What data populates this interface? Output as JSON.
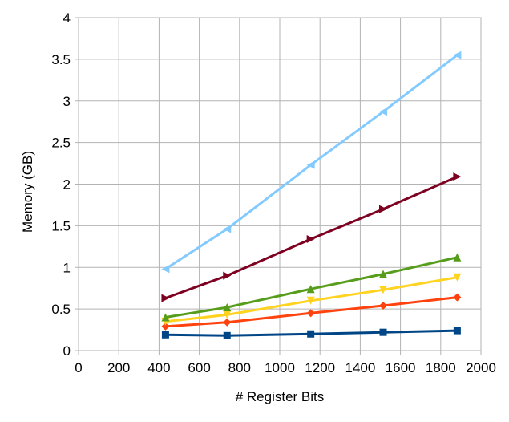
{
  "chart_data": {
    "type": "line",
    "title": "",
    "xlabel": "# Register Bits",
    "ylabel": "Memory (GB)",
    "xlim": [
      0,
      2000
    ],
    "ylim": [
      0,
      4
    ],
    "xticks": [
      0,
      200,
      400,
      600,
      800,
      1000,
      1200,
      1400,
      1600,
      1800,
      2000
    ],
    "yticks": [
      0,
      0.5,
      1,
      1.5,
      2,
      2.5,
      3,
      3.5,
      4
    ],
    "xtick_labels": [
      "0",
      "200",
      "400",
      "600",
      "800",
      "1000",
      "1200",
      "1400",
      "1600",
      "1800",
      "2000"
    ],
    "ytick_labels": [
      "0",
      "0.5",
      "1",
      "1.5",
      "2",
      "2.5",
      "3",
      "3.5",
      "4"
    ],
    "grid": true,
    "legend": "none",
    "series": [
      {
        "color": "#004586",
        "marker": "square",
        "x": [
          432,
          738,
          1154,
          1514,
          1882
        ],
        "y": [
          0.19,
          0.18,
          0.2,
          0.22,
          0.24
        ]
      },
      {
        "color": "#ff420e",
        "marker": "diamond",
        "x": [
          432,
          738,
          1154,
          1514,
          1882
        ],
        "y": [
          0.29,
          0.34,
          0.45,
          0.54,
          0.64
        ]
      },
      {
        "color": "#ffd320",
        "marker": "triangle-down",
        "x": [
          432,
          738,
          1154,
          1514,
          1882
        ],
        "y": [
          0.35,
          0.43,
          0.6,
          0.73,
          0.88
        ]
      },
      {
        "color": "#579d1c",
        "marker": "triangle-up",
        "x": [
          432,
          738,
          1154,
          1514,
          1882
        ],
        "y": [
          0.4,
          0.52,
          0.74,
          0.92,
          1.12
        ]
      },
      {
        "color": "#7e0021",
        "marker": "triangle-right",
        "x": [
          432,
          738,
          1154,
          1514,
          1882
        ],
        "y": [
          0.63,
          0.9,
          1.34,
          1.7,
          2.09
        ]
      },
      {
        "color": "#83caff",
        "marker": "triangle-left",
        "x": [
          432,
          738,
          1154,
          1514,
          1882
        ],
        "y": [
          0.98,
          1.46,
          2.23,
          2.87,
          3.55
        ]
      }
    ]
  }
}
